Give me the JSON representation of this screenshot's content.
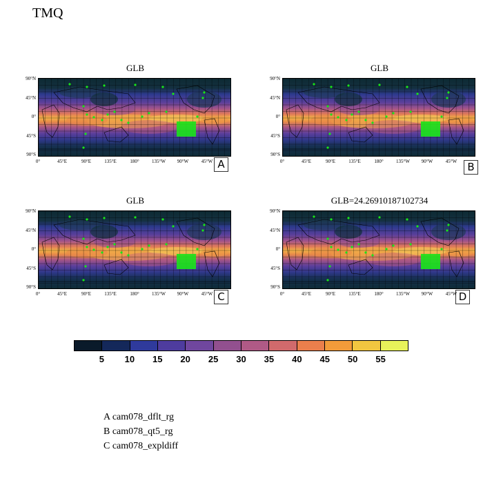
{
  "title": "TMQ",
  "panels": [
    {
      "title": "GLB",
      "letter": "A"
    },
    {
      "title": "GLB",
      "letter": "B"
    },
    {
      "title": "GLB",
      "letter": "C"
    },
    {
      "title": "GLB=24.26910187102734",
      "letter": "D"
    }
  ],
  "lat_labels": [
    "90°N",
    "45°N",
    "0°",
    "45°S",
    "90°S"
  ],
  "lon_labels": [
    "0°",
    "45°E",
    "90°E",
    "135°E",
    "180°",
    "135°W",
    "90°W",
    "45°W"
  ],
  "colorbar": {
    "colors": [
      "#0a1a2a",
      "#14285a",
      "#2f3a9c",
      "#4e3c9e",
      "#70479e",
      "#92508f",
      "#b05a86",
      "#d16a6c",
      "#ea7f4c",
      "#f29b3a",
      "#f1c640",
      "#e8f25a"
    ],
    "ticks": [
      "5",
      "10",
      "15",
      "20",
      "25",
      "30",
      "35",
      "40",
      "45",
      "50",
      "55"
    ]
  },
  "legend": [
    "A  cam078_dflt_rg",
    "B  cam078_qt5_rg",
    "C  cam078_expldiff"
  ],
  "marker_color": "#19e619"
}
